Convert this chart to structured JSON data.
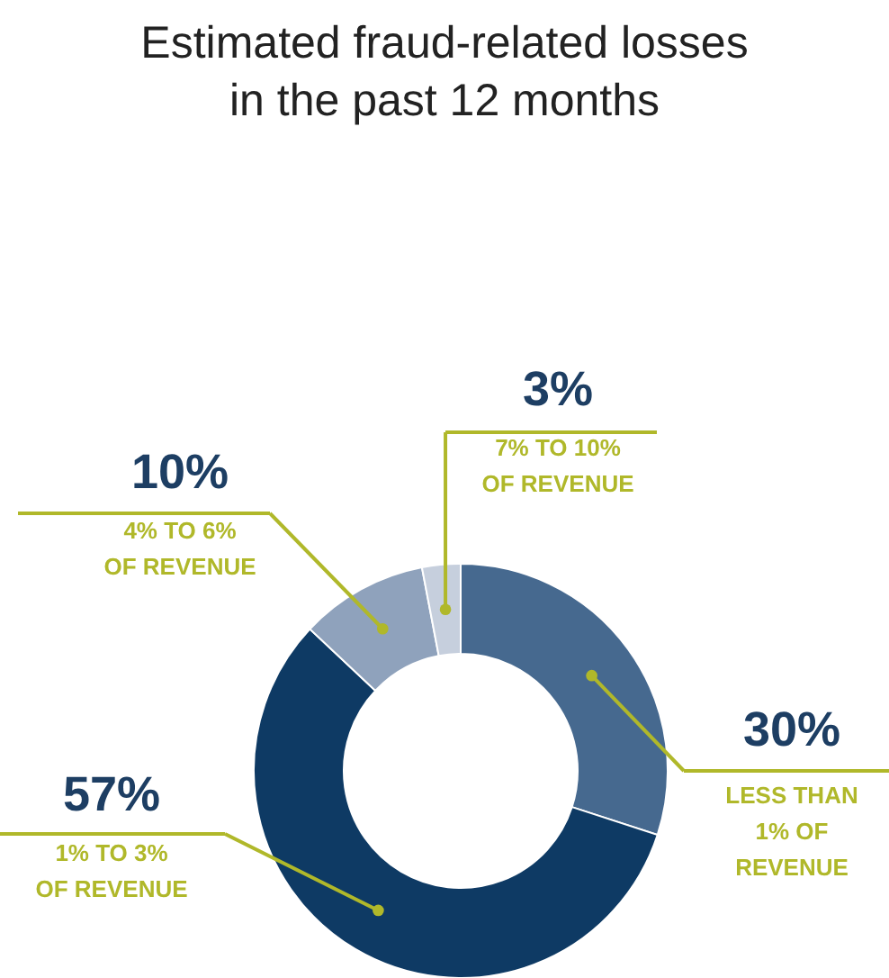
{
  "chart_data": {
    "type": "donut",
    "title": "Estimated fraud-related losses\nin the past 12 months",
    "categories": [
      "LESS THAN\n1% OF\nREVENUE",
      "1% TO 3%\nOF REVENUE",
      "4% TO 6%\nOF REVENUE",
      "7% TO 10%\nOF REVENUE"
    ],
    "values": [
      30,
      57,
      10,
      3
    ],
    "value_labels": [
      "30%",
      "57%",
      "10%",
      "3%"
    ],
    "colors": [
      "#46698f",
      "#0e3a64",
      "#8fa2bc",
      "#c6cfdd"
    ]
  }
}
